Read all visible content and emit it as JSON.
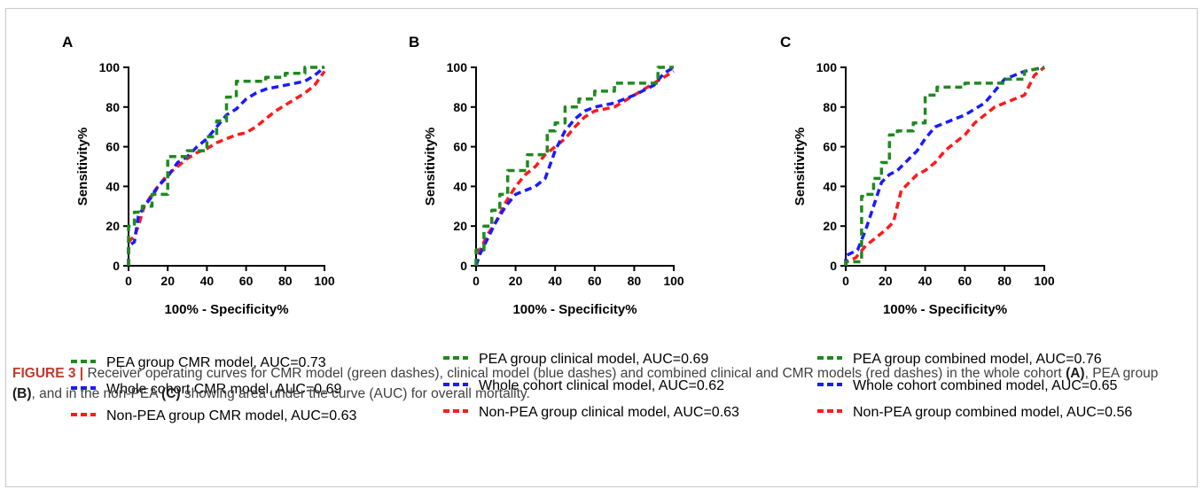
{
  "caption": {
    "figure_label": "FIGURE 3 |",
    "part1": " Receiver operating curves for CMR model (green dashes), clinical model (blue dashes) and combined clinical and CMR models (red dashes) in the whole cohort ",
    "ref_a": "(A)",
    "part2": ", PEA group ",
    "ref_b": "(B)",
    "part3": ", and in the non-PEA ",
    "ref_c": "(C)",
    "part4": " showing area under the curve (AUC) for overall mortality."
  },
  "colors": {
    "green": "#1e8a1e",
    "blue": "#1a1aff",
    "red": "#ff1a1a"
  },
  "chart_data": [
    {
      "type": "line",
      "panel": "A",
      "xlabel": "100% - Specificity%",
      "ylabel": "Sensitivity%",
      "xlim": [
        0,
        100
      ],
      "ylim": [
        0,
        100
      ],
      "xticks": [
        0,
        20,
        40,
        60,
        80,
        100
      ],
      "yticks": [
        0,
        20,
        40,
        60,
        80,
        100
      ],
      "grid": false,
      "series": [
        {
          "name": "PEA group CMR model, AUC=0.73",
          "color": "green",
          "x": [
            0,
            0,
            3,
            3,
            7,
            7,
            12,
            12,
            20,
            20,
            30,
            30,
            40,
            40,
            45,
            45,
            50,
            50,
            55,
            55,
            60,
            60,
            70,
            70,
            80,
            80,
            90,
            90,
            100
          ],
          "y": [
            0,
            20,
            20,
            27,
            27,
            30,
            30,
            36,
            36,
            55,
            55,
            58,
            58,
            65,
            65,
            73,
            73,
            85,
            85,
            93,
            93,
            93,
            93,
            95,
            95,
            97,
            97,
            100,
            100
          ]
        },
        {
          "name": "Whole cohort CMR model, AUC=0.69",
          "color": "blue",
          "x": [
            0,
            0,
            3,
            5,
            8,
            12,
            15,
            20,
            25,
            30,
            35,
            40,
            45,
            50,
            55,
            60,
            65,
            70,
            80,
            90,
            95,
            100
          ],
          "y": [
            0,
            10,
            12,
            25,
            30,
            35,
            40,
            45,
            52,
            55,
            60,
            64,
            70,
            76,
            79,
            84,
            87,
            89,
            91,
            93,
            96,
            100
          ]
        },
        {
          "name": "Non-PEA group CMR model, AUC=0.63",
          "color": "red",
          "x": [
            0,
            0,
            3,
            5,
            8,
            12,
            15,
            20,
            25,
            30,
            35,
            40,
            45,
            50,
            55,
            60,
            65,
            70,
            75,
            80,
            85,
            90,
            95,
            100
          ],
          "y": [
            0,
            12,
            15,
            20,
            30,
            36,
            40,
            46,
            50,
            54,
            57,
            59,
            62,
            64,
            66,
            67,
            70,
            74,
            78,
            81,
            84,
            87,
            91,
            98
          ]
        }
      ],
      "legend": [
        "PEA group CMR model, AUC=0.73",
        "Whole cohort CMR model, AUC=0.69",
        "Non-PEA group CMR model, AUC=0.63"
      ]
    },
    {
      "type": "line",
      "panel": "B",
      "xlabel": "100% - Specificity%",
      "ylabel": "Sensitivity%",
      "xlim": [
        0,
        100
      ],
      "ylim": [
        0,
        100
      ],
      "xticks": [
        0,
        20,
        40,
        60,
        80,
        100
      ],
      "yticks": [
        0,
        20,
        40,
        60,
        80,
        100
      ],
      "grid": false,
      "series": [
        {
          "name": "PEA group clinical model, AUC=0.69",
          "color": "green",
          "x": [
            0,
            0,
            4,
            4,
            8,
            8,
            12,
            12,
            16,
            16,
            26,
            26,
            36,
            36,
            40,
            40,
            45,
            45,
            52,
            52,
            60,
            60,
            70,
            70,
            92,
            92,
            100
          ],
          "y": [
            0,
            8,
            8,
            20,
            20,
            28,
            28,
            36,
            36,
            48,
            48,
            56,
            56,
            68,
            68,
            72,
            72,
            80,
            80,
            84,
            84,
            88,
            88,
            92,
            92,
            100,
            100
          ]
        },
        {
          "name": "Whole cohort clinical model, AUC=0.62",
          "color": "blue",
          "x": [
            0,
            2,
            6,
            10,
            15,
            20,
            25,
            30,
            35,
            40,
            45,
            50,
            55,
            60,
            70,
            80,
            90,
            95,
            100
          ],
          "y": [
            0,
            6,
            14,
            22,
            30,
            36,
            38,
            40,
            44,
            58,
            68,
            74,
            78,
            80,
            82,
            86,
            91,
            97,
            100
          ]
        },
        {
          "name": "Non-PEA group clinical model, AUC=0.63",
          "color": "red",
          "x": [
            0,
            2,
            6,
            10,
            15,
            20,
            25,
            30,
            35,
            40,
            45,
            50,
            55,
            60,
            70,
            80,
            90,
            100
          ],
          "y": [
            0,
            8,
            16,
            22,
            32,
            40,
            46,
            50,
            56,
            60,
            64,
            70,
            75,
            78,
            80,
            86,
            92,
            98
          ]
        }
      ],
      "legend": [
        "PEA group clinical model, AUC=0.69",
        "Whole cohort clinical model, AUC=0.62",
        "Non-PEA group clinical model, AUC=0.63"
      ]
    },
    {
      "type": "line",
      "panel": "C",
      "xlabel": "100% - Specificity%",
      "ylabel": "Sensitivity%",
      "xlim": [
        0,
        100
      ],
      "ylim": [
        0,
        100
      ],
      "xticks": [
        0,
        20,
        40,
        60,
        80,
        100
      ],
      "yticks": [
        0,
        20,
        40,
        60,
        80,
        100
      ],
      "grid": false,
      "series": [
        {
          "name": "PEA group combined model, AUC=0.76",
          "color": "green",
          "x": [
            0,
            0,
            8,
            8,
            10,
            10,
            14,
            14,
            18,
            18,
            22,
            22,
            26,
            26,
            34,
            34,
            40,
            40,
            46,
            46,
            60,
            60,
            80,
            80,
            90,
            90,
            100
          ],
          "y": [
            0,
            2,
            2,
            35,
            35,
            36,
            36,
            44,
            44,
            52,
            52,
            66,
            66,
            68,
            68,
            72,
            72,
            86,
            86,
            90,
            90,
            92,
            92,
            94,
            94,
            98,
            100
          ]
        },
        {
          "name": "Whole cohort combined model, AUC=0.65",
          "color": "blue",
          "x": [
            0,
            0,
            6,
            10,
            14,
            18,
            22,
            26,
            30,
            36,
            40,
            45,
            50,
            55,
            60,
            70,
            75,
            80,
            90,
            100
          ],
          "y": [
            0,
            5,
            8,
            18,
            30,
            42,
            46,
            48,
            52,
            58,
            64,
            70,
            72,
            74,
            76,
            82,
            88,
            94,
            98,
            100
          ]
        },
        {
          "name": "Non-PEA group combined model, AUC=0.56",
          "color": "red",
          "x": [
            0,
            0,
            5,
            10,
            15,
            20,
            24,
            26,
            28,
            32,
            36,
            40,
            45,
            50,
            55,
            60,
            65,
            70,
            75,
            80,
            85,
            90,
            92,
            95,
            100
          ],
          "y": [
            0,
            2,
            4,
            10,
            14,
            18,
            22,
            30,
            38,
            42,
            46,
            48,
            52,
            58,
            62,
            66,
            72,
            76,
            80,
            82,
            84,
            86,
            90,
            96,
            100
          ]
        }
      ],
      "legend": [
        "PEA group combined model, AUC=0.76",
        "Whole cohort combined model, AUC=0.65",
        "Non-PEA group combined model, AUC=0.56"
      ]
    }
  ]
}
